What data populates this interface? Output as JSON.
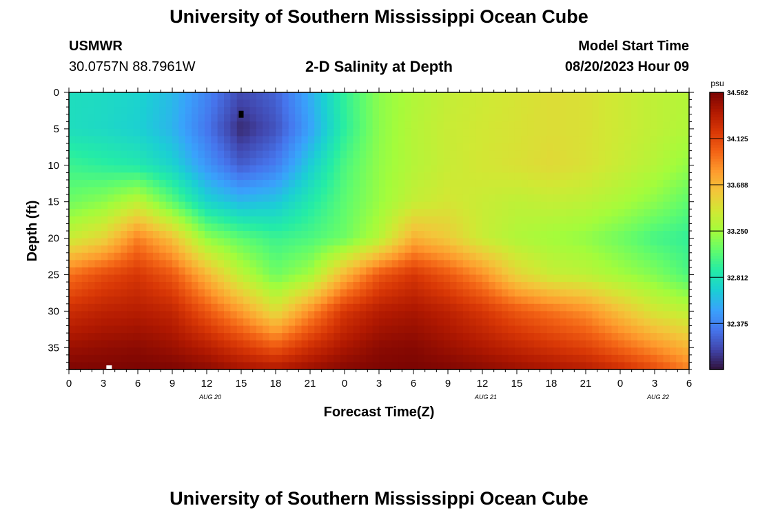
{
  "page": {
    "title_top": "University of Southern Mississippi Ocean Cube",
    "title_bottom": "University of Southern Mississippi Ocean Cube",
    "station_name": "USMWR",
    "station_coords": "30.0757N  88.7961W",
    "plot_title": "2-D Salinity at Depth",
    "start_label": "Model Start Time",
    "start_value": "08/20/2023 Hour 09"
  },
  "chart_data": {
    "type": "heatmap",
    "title": "2-D Salinity at Depth",
    "xlabel": "Forecast Time(Z)",
    "ylabel": "Depth (ft)",
    "xlim": [
      0,
      54
    ],
    "ylim": [
      38,
      0
    ],
    "x_ticks": [
      {
        "v": 0,
        "label": "0"
      },
      {
        "v": 3,
        "label": "3"
      },
      {
        "v": 6,
        "label": "6"
      },
      {
        "v": 9,
        "label": "9"
      },
      {
        "v": 12,
        "label": "12"
      },
      {
        "v": 15,
        "label": "15"
      },
      {
        "v": 18,
        "label": "18"
      },
      {
        "v": 21,
        "label": "21"
      },
      {
        "v": 24,
        "label": "0"
      },
      {
        "v": 27,
        "label": "3"
      },
      {
        "v": 30,
        "label": "6"
      },
      {
        "v": 33,
        "label": "9"
      },
      {
        "v": 36,
        "label": "12"
      },
      {
        "v": 39,
        "label": "15"
      },
      {
        "v": 42,
        "label": "18"
      },
      {
        "v": 45,
        "label": "21"
      },
      {
        "v": 48,
        "label": "0"
      },
      {
        "v": 51,
        "label": "3"
      },
      {
        "v": 54,
        "label": "6"
      }
    ],
    "date_labels": [
      {
        "v": 12.3,
        "label": "AUG 20"
      },
      {
        "v": 36.3,
        "label": "AUG 21"
      },
      {
        "v": 51.3,
        "label": "AUG 22"
      }
    ],
    "y_ticks": [
      0,
      5,
      10,
      15,
      20,
      25,
      30,
      35
    ],
    "colorbar": {
      "unit": "psu",
      "min": 31.94,
      "max": 34.562,
      "ticks": [
        "34.562",
        "34.125",
        "33.688",
        "33.250",
        "32.812",
        "32.375"
      ]
    },
    "colormap": [
      "#30123b",
      "#4145ab",
      "#4675ed",
      "#39a2fc",
      "#1bcfd4",
      "#24eca6",
      "#61fc6c",
      "#a4fc3b",
      "#d1e834",
      "#f3c63a",
      "#fe9b2d",
      "#f36315",
      "#d93806",
      "#b11901",
      "#7a0402"
    ],
    "grid_x": [
      0,
      3,
      6,
      9,
      12,
      15,
      18,
      21,
      24,
      27,
      30,
      33,
      36,
      39,
      42,
      45,
      48,
      51,
      54
    ],
    "grid_depth": [
      0,
      5,
      10,
      15,
      20,
      25,
      30,
      35,
      38
    ],
    "salinity": [
      [
        32.78,
        32.76,
        32.72,
        32.6,
        32.38,
        32.15,
        32.25,
        32.55,
        32.92,
        33.18,
        33.3,
        33.38,
        33.42,
        33.46,
        33.5,
        33.48,
        33.42,
        33.36,
        33.32
      ],
      [
        32.78,
        32.75,
        32.7,
        32.58,
        32.32,
        32.03,
        32.18,
        32.5,
        32.9,
        33.18,
        33.32,
        33.4,
        33.44,
        33.47,
        33.5,
        33.48,
        33.42,
        33.36,
        33.3
      ],
      [
        32.95,
        32.9,
        32.85,
        32.72,
        32.45,
        32.22,
        32.35,
        32.68,
        33.0,
        33.2,
        33.32,
        33.4,
        33.45,
        33.48,
        33.52,
        33.48,
        33.4,
        33.32,
        33.2
      ],
      [
        33.1,
        33.18,
        33.35,
        33.05,
        32.72,
        32.6,
        32.65,
        32.85,
        33.05,
        33.22,
        33.38,
        33.45,
        33.4,
        33.36,
        33.38,
        33.35,
        33.28,
        33.18,
        33.05
      ],
      [
        33.4,
        33.55,
        33.9,
        33.65,
        33.2,
        33.05,
        32.95,
        33.0,
        33.1,
        33.32,
        33.72,
        33.6,
        33.4,
        33.3,
        33.25,
        33.2,
        33.1,
        32.98,
        32.92
      ],
      [
        33.95,
        34.1,
        34.2,
        34.05,
        33.7,
        33.35,
        33.1,
        33.25,
        33.7,
        34.05,
        34.2,
        34.05,
        33.85,
        33.55,
        33.4,
        33.35,
        33.25,
        33.15,
        33.0
      ],
      [
        34.25,
        34.32,
        34.35,
        34.3,
        34.05,
        33.8,
        33.5,
        33.85,
        34.2,
        34.35,
        34.4,
        34.32,
        34.2,
        34.05,
        33.95,
        33.85,
        33.65,
        33.45,
        33.35
      ],
      [
        34.45,
        34.48,
        34.5,
        34.45,
        34.35,
        34.2,
        34.05,
        34.25,
        34.4,
        34.5,
        34.52,
        34.45,
        34.38,
        34.3,
        34.22,
        34.15,
        34.0,
        33.85,
        33.7
      ],
      [
        34.55,
        34.55,
        34.56,
        34.55,
        34.5,
        34.42,
        34.38,
        34.45,
        34.52,
        34.55,
        34.56,
        34.54,
        34.5,
        34.45,
        34.4,
        34.35,
        34.25,
        34.1,
        33.9
      ]
    ],
    "markers": [
      {
        "type": "black-square",
        "x": 15,
        "depth": 3
      },
      {
        "type": "white-square",
        "x": 3.5,
        "depth": 38
      }
    ]
  }
}
